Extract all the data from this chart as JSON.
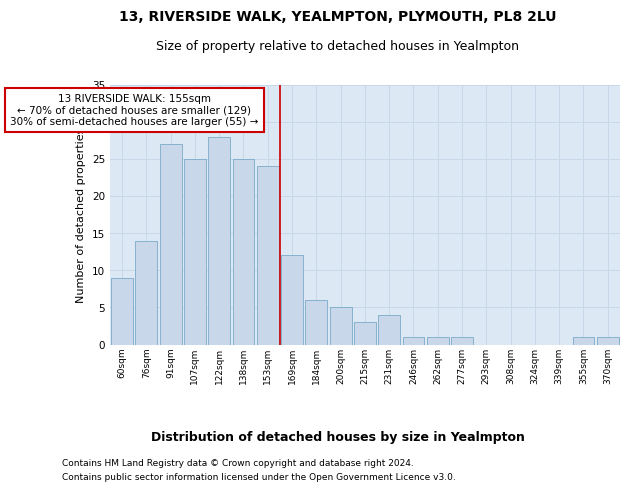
{
  "title1": "13, RIVERSIDE WALK, YEALMPTON, PLYMOUTH, PL8 2LU",
  "title2": "Size of property relative to detached houses in Yealmpton",
  "xlabel": "Distribution of detached houses by size in Yealmpton",
  "ylabel": "Number of detached properties",
  "categories": [
    "60sqm",
    "76sqm",
    "91sqm",
    "107sqm",
    "122sqm",
    "138sqm",
    "153sqm",
    "169sqm",
    "184sqm",
    "200sqm",
    "215sqm",
    "231sqm",
    "246sqm",
    "262sqm",
    "277sqm",
    "293sqm",
    "308sqm",
    "324sqm",
    "339sqm",
    "355sqm",
    "370sqm"
  ],
  "values": [
    9,
    14,
    27,
    25,
    28,
    25,
    24,
    12,
    6,
    5,
    3,
    4,
    1,
    1,
    1,
    0,
    0,
    0,
    0,
    1,
    1
  ],
  "bar_color": "#c8d8ea",
  "bar_edge_color": "#7aaac8",
  "vline_x_index": 6.5,
  "vline_color": "#cc0000",
  "annotation_text": "13 RIVERSIDE WALK: 155sqm\n← 70% of detached houses are smaller (129)\n30% of semi-detached houses are larger (55) →",
  "annotation_box_color": "#ffffff",
  "annotation_box_edge_color": "#cc0000",
  "ylim": [
    0,
    35
  ],
  "yticks": [
    0,
    5,
    10,
    15,
    20,
    25,
    30,
    35
  ],
  "grid_color": "#c8d8e8",
  "bg_color": "#dce8f4",
  "footer1": "Contains HM Land Registry data © Crown copyright and database right 2024.",
  "footer2": "Contains public sector information licensed under the Open Government Licence v3.0.",
  "title1_fontsize": 10,
  "title2_fontsize": 9,
  "annotation_fontsize": 7.5,
  "ylabel_fontsize": 8,
  "xlabel_fontsize": 9,
  "footer_fontsize": 6.5
}
